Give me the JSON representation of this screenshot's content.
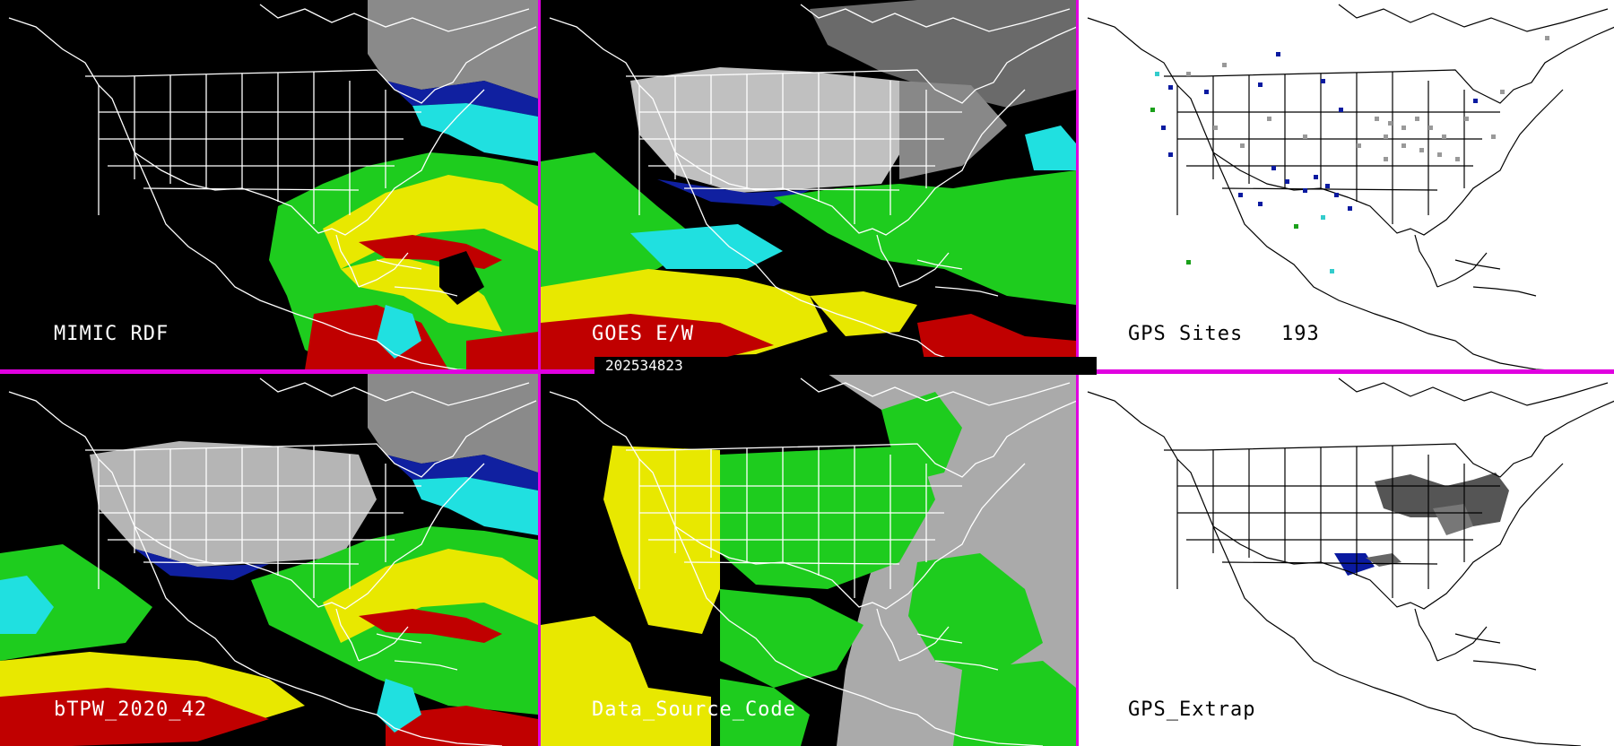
{
  "panels": {
    "mimic": {
      "label": "MIMIC RDF"
    },
    "goes": {
      "label": "GOES E/W"
    },
    "gps_sites": {
      "label": "GPS Sites",
      "count": "193"
    },
    "btpw": {
      "label": "bTPW_2020_42"
    },
    "source": {
      "label": "Data_Source_Code"
    },
    "gps_extrap": {
      "label": "GPS_Extrap"
    }
  },
  "timestamp": "202534823",
  "colors": {
    "divider": "#e000e0",
    "green": "#1ecc1e",
    "yellow": "#e8e800",
    "red": "#c00000",
    "cyan": "#22e8e8",
    "blue": "#0a1aa0",
    "gray": "#aaaaaa"
  }
}
